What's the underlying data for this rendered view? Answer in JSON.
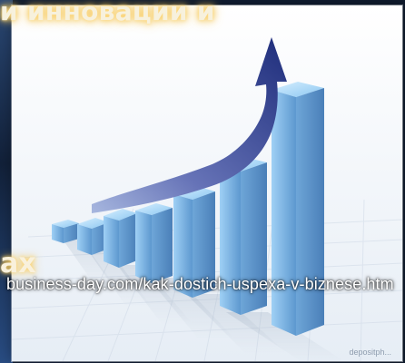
{
  "overlay": {
    "headline": "и инновации и",
    "fragment": "ах",
    "source_url": "business-day.com/kak-dostich-uspexa-v-biznese.htm",
    "watermark": "depositph..."
  },
  "colors": {
    "background": "#101c2f",
    "bar_blue": "#7bb3e0",
    "arrow_dark": "#2d3b82",
    "glow": "#f4c75a"
  }
}
